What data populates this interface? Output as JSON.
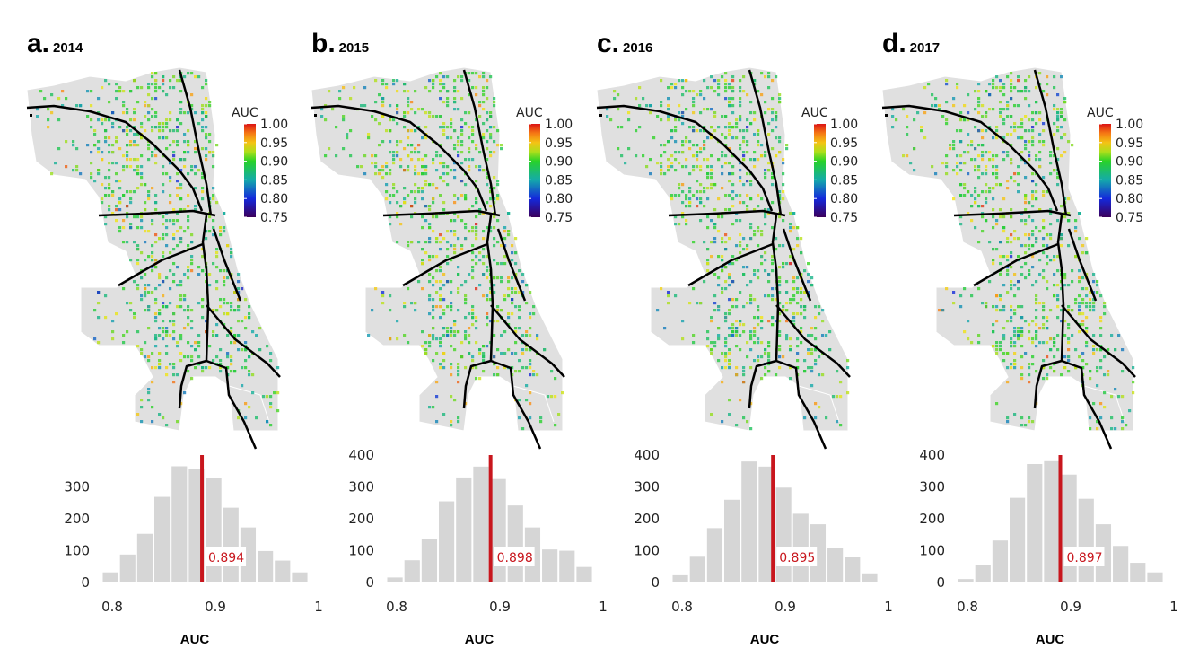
{
  "colors": {
    "bar": "#d6d6d6",
    "mean_line": "#c8161d",
    "map_land": "#e0e0e0",
    "road": "#000000"
  },
  "chart_data": [
    {
      "type": "bar",
      "panel_letter": "a.",
      "year": "2014",
      "legend": {
        "title": "AUC",
        "ticks": [
          "1.00",
          "0.95",
          "0.90",
          "0.85",
          "0.80",
          "0.75"
        ],
        "range": [
          0.75,
          1.0
        ]
      },
      "bin_start": 0.79,
      "bin_width": 0.01667,
      "values": [
        29,
        85,
        150,
        266,
        362,
        353,
        324,
        232,
        170,
        96,
        66,
        29
      ],
      "mean": 0.894,
      "mean_label": "0.894",
      "xlabel": "AUC",
      "xticks": [
        "0.8",
        "0.9",
        "1"
      ],
      "xlim": [
        0.8,
        1.0
      ],
      "yticks": [
        "0",
        "100",
        "200",
        "300"
      ],
      "ylim": [
        0,
        400
      ]
    },
    {
      "type": "bar",
      "panel_letter": "b.",
      "year": "2015",
      "legend": {
        "title": "AUC",
        "ticks": [
          "1.00",
          "0.95",
          "0.90",
          "0.85",
          "0.80",
          "0.75"
        ],
        "range": [
          0.75,
          1.0
        ]
      },
      "bin_start": 0.79,
      "bin_width": 0.01667,
      "values": [
        13,
        67,
        134,
        252,
        327,
        361,
        322,
        239,
        170,
        101,
        97,
        46
      ],
      "mean": 0.898,
      "mean_label": "0.898",
      "xlabel": "AUC",
      "xticks": [
        "0.8",
        "0.9",
        "1"
      ],
      "xlim": [
        0.8,
        1.0
      ],
      "yticks": [
        "0",
        "100",
        "200",
        "300",
        "400"
      ],
      "ylim": [
        0,
        400
      ]
    },
    {
      "type": "bar",
      "panel_letter": "c.",
      "year": "2016",
      "legend": {
        "title": "AUC",
        "ticks": [
          "1.00",
          "0.95",
          "0.90",
          "0.85",
          "0.80",
          "0.75"
        ],
        "range": [
          0.75,
          1.0
        ]
      },
      "bin_start": 0.79,
      "bin_width": 0.01667,
      "values": [
        20,
        78,
        168,
        257,
        377,
        361,
        295,
        213,
        180,
        107,
        76,
        26
      ],
      "mean": 0.895,
      "mean_label": "0.895",
      "xlabel": "AUC",
      "xticks": [
        "0.8",
        "0.9",
        "1"
      ],
      "xlim": [
        0.8,
        1.0
      ],
      "yticks": [
        "0",
        "100",
        "200",
        "300",
        "400"
      ],
      "ylim": [
        0,
        400
      ]
    },
    {
      "type": "bar",
      "panel_letter": "d.",
      "year": "2017",
      "legend": {
        "title": "AUC",
        "ticks": [
          "1.00",
          "0.95",
          "0.90",
          "0.85",
          "0.80",
          "0.75"
        ],
        "range": [
          0.75,
          1.0
        ]
      },
      "bin_start": 0.79,
      "bin_width": 0.01667,
      "values": [
        8,
        53,
        129,
        263,
        369,
        378,
        336,
        260,
        180,
        112,
        59,
        29
      ],
      "mean": 0.897,
      "mean_label": "0.897",
      "xlabel": "AUC",
      "xticks": [
        "0.8",
        "0.9",
        "1"
      ],
      "xlim": [
        0.8,
        1.0
      ],
      "yticks": [
        "0",
        "100",
        "200",
        "300",
        "400"
      ],
      "ylim": [
        0,
        400
      ]
    }
  ]
}
